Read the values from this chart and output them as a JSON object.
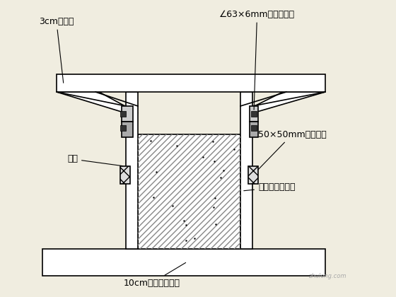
{
  "bg_color": "#f0ede0",
  "line_color": "#000000",
  "hatch_color": "#555555",
  "labels": {
    "top_left": "3cm厚木板",
    "top_right": "∠63×6mm的角钢卡口",
    "mid_right_top": "50×50mm调整木塞",
    "mid_left": "撑杆",
    "mid_right_bot": "第一次预制板桩",
    "bottom": "10cm厚混凝土台座"
  },
  "fig_width": 5.6,
  "fig_height": 4.2,
  "dpi": 100
}
